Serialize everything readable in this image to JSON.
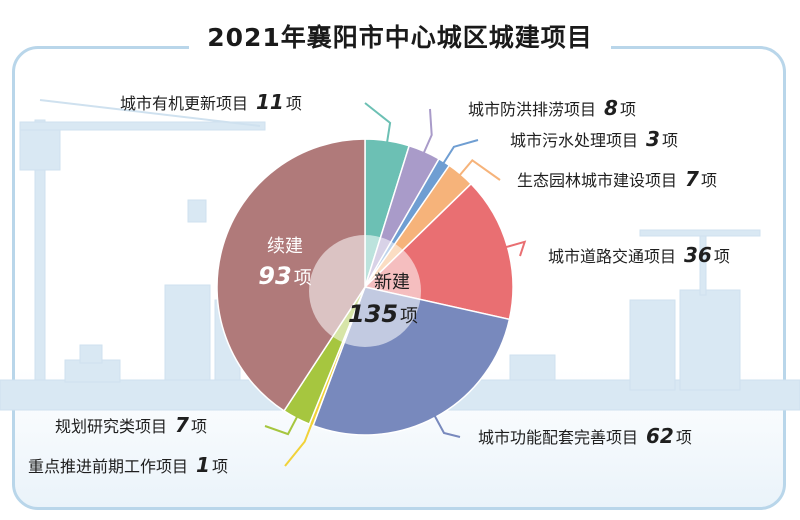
{
  "title": "2021年襄阳市中心城区城建项目",
  "colors": {
    "frame": "#b9d6ea",
    "skyline": "#d6e6f2",
    "new_teal": "#6cc0b4",
    "new_purple": "#a99bc9",
    "new_blue": "#6f9ed2",
    "new_orange": "#f6b37a",
    "new_red": "#e96f72",
    "new_navy": "#7889bd",
    "new_yellow": "#f1d239",
    "new_green": "#a6c63f",
    "continued": "#b07a7a"
  },
  "chart_data": {
    "type": "pie",
    "title": "2021年襄阳市中心城区城建项目",
    "total_new_label": "新建",
    "total_new_value": "135",
    "total_new_unit": "项",
    "slices": [
      {
        "label": "城市有机更新项目",
        "value": 11,
        "unit": "项",
        "group": "新建",
        "color": "#6cc0b4"
      },
      {
        "label": "城市防洪排涝项目",
        "value": 8,
        "unit": "项",
        "group": "新建",
        "color": "#a99bc9"
      },
      {
        "label": "城市污水处理项目",
        "value": 3,
        "unit": "项",
        "group": "新建",
        "color": "#6f9ed2"
      },
      {
        "label": "生态园林城市建设项目",
        "value": 7,
        "unit": "项",
        "group": "新建",
        "color": "#f6b37a"
      },
      {
        "label": "城市道路交通项目",
        "value": 36,
        "unit": "项",
        "group": "新建",
        "color": "#e96f72"
      },
      {
        "label": "城市功能配套完善项目",
        "value": 62,
        "unit": "项",
        "group": "新建",
        "color": "#7889bd"
      },
      {
        "label": "重点推进前期工作项目",
        "value": 1,
        "unit": "项",
        "group": "新建",
        "color": "#f1d239"
      },
      {
        "label": "规划研究类项目",
        "value": 7,
        "unit": "项",
        "group": "新建",
        "color": "#a6c63f"
      },
      {
        "label": "续建",
        "value": 93,
        "unit": "项",
        "group": "续建",
        "color": "#b07a7a"
      }
    ]
  }
}
